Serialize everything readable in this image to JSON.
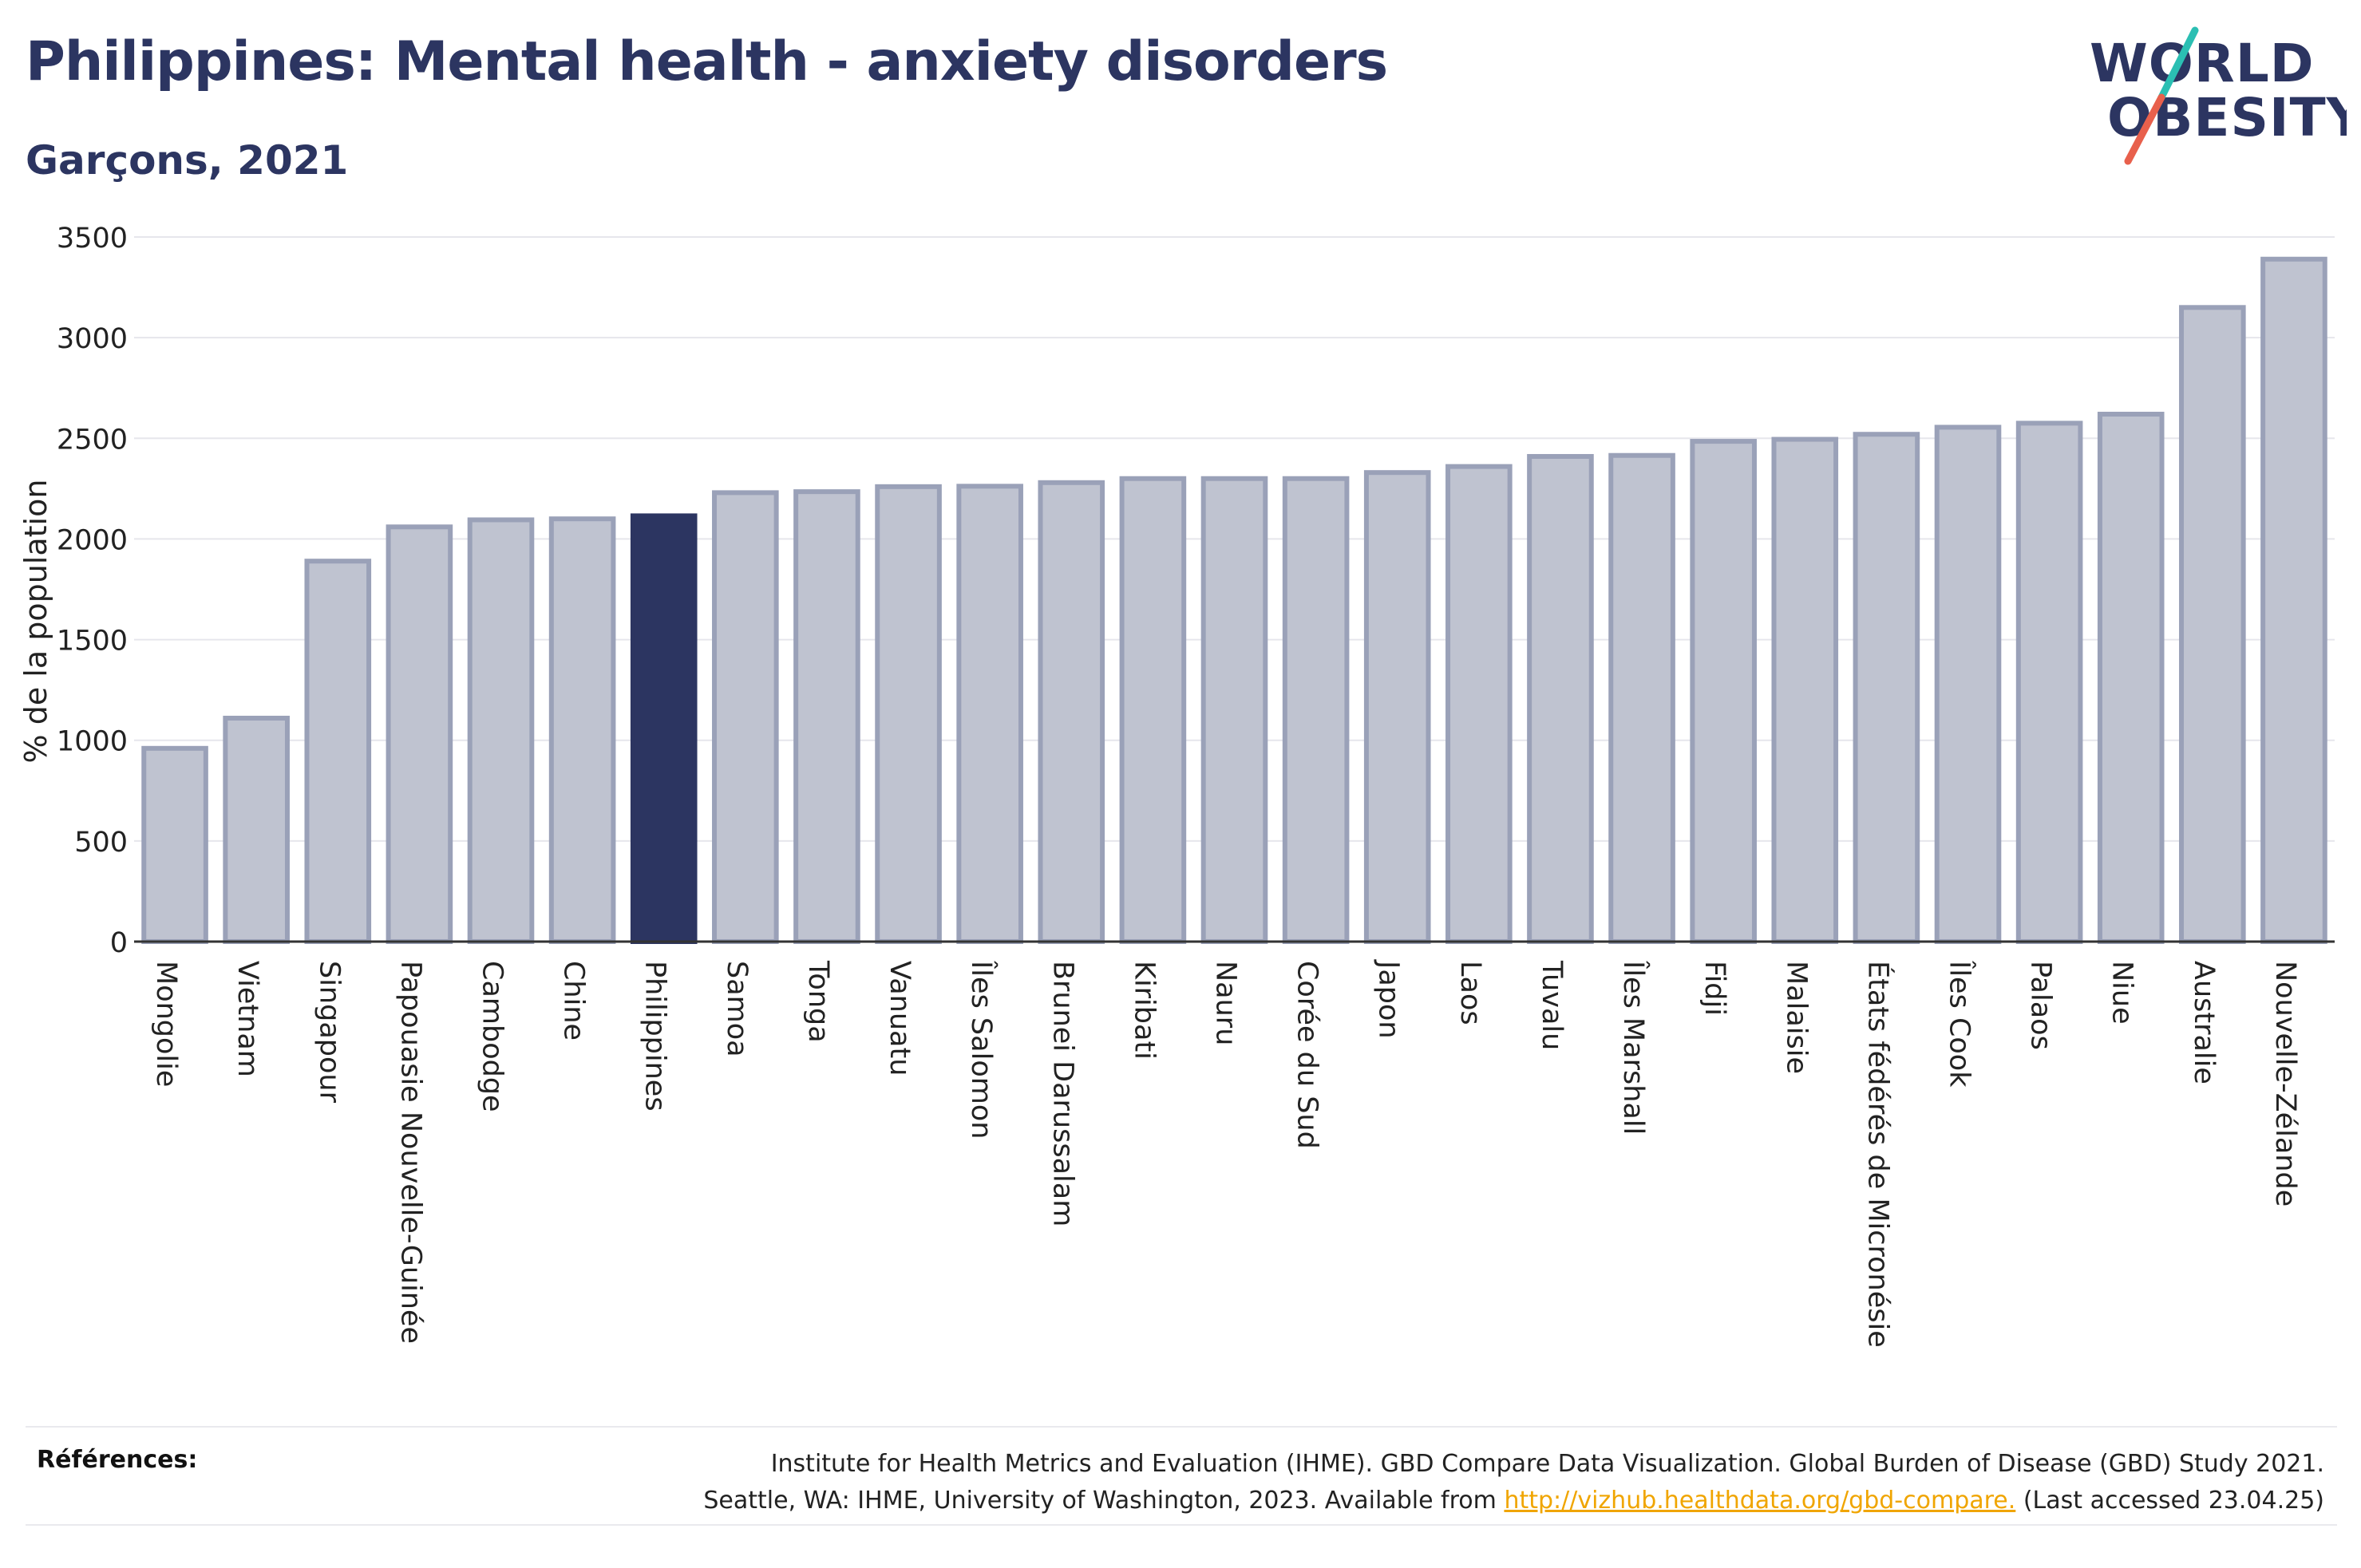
{
  "header": {
    "title": "Philippines: Mental health - anxiety disorders",
    "subtitle": "Garçons, 2021"
  },
  "logo": {
    "line1": "WORLD",
    "line2": "OBESITY",
    "text_color": "#2c3561",
    "slash_colors": [
      "#2bbfb3",
      "#e8604c"
    ]
  },
  "chart_data": {
    "type": "bar",
    "title": "Philippines: Mental health - anxiety disorders",
    "subtitle": "Garçons, 2021",
    "ylabel": "% de la population",
    "xlabel": "",
    "ylim": [
      0,
      3500
    ],
    "yticks": [
      0,
      500,
      1000,
      1500,
      2000,
      2500,
      3000,
      3500
    ],
    "grid": true,
    "highlight": "Philippines",
    "colors": {
      "bar_fill": "#bfc3d0",
      "bar_stroke": "#9aa1b8",
      "highlight_fill": "#2c3561",
      "grid": "#e6e6ec",
      "axis": "#333333"
    },
    "categories": [
      "Mongolie",
      "Vietnam",
      "Singapour",
      "Papouasie Nouvelle-Guinée",
      "Cambodge",
      "Chine",
      "Philippines",
      "Samoa",
      "Tonga",
      "Vanuatu",
      "Îles Salomon",
      "Brunei Darussalam",
      "Kiribati",
      "Nauru",
      "Corée du Sud",
      "Japon",
      "Laos",
      "Tuvalu",
      "Îles Marshall",
      "Fidji",
      "Malaisie",
      "États fédérés de Micronésie",
      "Îles Cook",
      "Palaos",
      "Niue",
      "Australie",
      "Nouvelle-Zélande"
    ],
    "values": [
      960,
      1110,
      1890,
      2060,
      2095,
      2100,
      2115,
      2230,
      2235,
      2260,
      2262,
      2280,
      2300,
      2300,
      2300,
      2330,
      2360,
      2410,
      2415,
      2485,
      2495,
      2520,
      2555,
      2575,
      2620,
      3150,
      3390
    ]
  },
  "references": {
    "label": "Références:",
    "line1": "Institute for Health Metrics and Evaluation (IHME). GBD Compare Data Visualization. Global Burden of Disease (GBD) Study 2021.",
    "line2_prefix": "Seattle, WA: IHME, University of Washington, 2023. Available from",
    "link": "http://vizhub.healthdata.org/gbd-compare.",
    "line2_suffix": "(Last accessed 23.04.25)"
  }
}
